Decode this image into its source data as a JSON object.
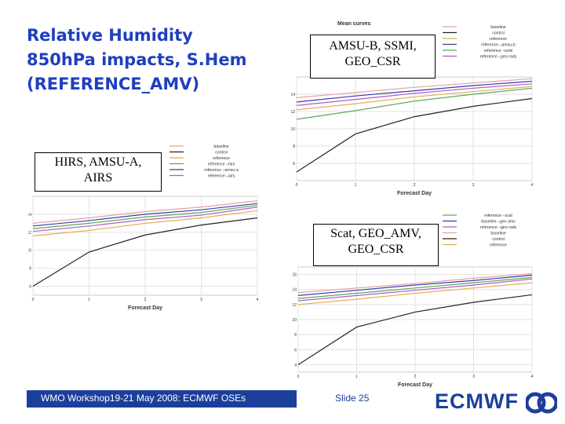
{
  "title": {
    "line1": "Relative Humidity",
    "line2": "850hPa impacts, S.Hem",
    "line3": "(REFERENCE_AMV)"
  },
  "footer": {
    "text": "WMO Workshop19-21 May 2008: ECMWF OSEs",
    "slide": "Slide 25",
    "logo": "ECMWF"
  },
  "colors": {
    "accent": "#1c3f9b",
    "title": "#1f3fbf"
  },
  "chart_data": [
    {
      "type": "line",
      "label": [
        "HIRS, AMSU-A,",
        "AIRS"
      ],
      "xlabel": "Forecast Day",
      "x": [
        0,
        1,
        2,
        3,
        4
      ],
      "xticks": [
        "0",
        "1",
        "2",
        "3",
        "4"
      ],
      "ylim": [
        5,
        16
      ],
      "yticks": [
        "6",
        "8",
        "10",
        "12",
        "14"
      ],
      "legend_position": "top",
      "series": [
        {
          "name": "baseline",
          "color": "#e8a0a0",
          "values": [
            13.0,
            13.6,
            14.3,
            14.8,
            15.5
          ]
        },
        {
          "name": "control",
          "color": "#222222",
          "values": [
            6.0,
            9.8,
            11.7,
            12.8,
            13.6
          ]
        },
        {
          "name": "reference",
          "color": "#e0b050",
          "values": [
            11.6,
            12.2,
            13.0,
            13.6,
            14.4
          ]
        },
        {
          "name": "reference –hirs",
          "color": "#55aa55",
          "values": [
            12.4,
            13.0,
            13.7,
            14.2,
            15.0
          ]
        },
        {
          "name": "reference –amsu-a",
          "color": "#3a3ab0",
          "values": [
            12.7,
            13.3,
            14.0,
            14.5,
            15.2
          ]
        },
        {
          "name": "reference –airs",
          "color": "#b05cc8",
          "values": [
            12.1,
            12.7,
            13.4,
            13.9,
            14.8
          ]
        }
      ]
    },
    {
      "type": "line",
      "label": [
        "AMSU-B, SSMI,",
        "GEO_CSR"
      ],
      "title": "Mean curves",
      "xlabel": "Forecast Day",
      "x": [
        0,
        1,
        2,
        3,
        4
      ],
      "xticks": [
        "0",
        "1",
        "2",
        "3",
        "4"
      ],
      "ylim": [
        4,
        16
      ],
      "yticks": [
        "6",
        "8",
        "10",
        "12",
        "14"
      ],
      "legend_position": "top-right",
      "series": [
        {
          "name": "baseline",
          "color": "#e8a0a0",
          "values": [
            13.6,
            14.2,
            14.8,
            15.3,
            15.8
          ]
        },
        {
          "name": "control",
          "color": "#222222",
          "values": [
            5.0,
            9.4,
            11.4,
            12.6,
            13.5
          ]
        },
        {
          "name": "reference",
          "color": "#e0b050",
          "values": [
            12.2,
            12.9,
            13.7,
            14.3,
            14.9
          ]
        },
        {
          "name": "reference –amsu-b",
          "color": "#3a3ab0",
          "values": [
            13.1,
            13.8,
            14.4,
            15.0,
            15.5
          ]
        },
        {
          "name": "reference –ssmi",
          "color": "#55aa55",
          "values": [
            11.1,
            12.1,
            13.2,
            14.0,
            14.7
          ]
        },
        {
          "name": "reference –geo rads",
          "color": "#b05cc8",
          "values": [
            12.7,
            13.4,
            14.1,
            14.7,
            15.2
          ]
        }
      ]
    },
    {
      "type": "line",
      "label": [
        "Scat, GEO_AMV,",
        "GEO_CSR"
      ],
      "xlabel": "Forecast Day",
      "x": [
        0,
        1,
        2,
        3,
        4
      ],
      "xticks": [
        "0",
        "1",
        "2",
        "3",
        "4"
      ],
      "ylim": [
        3,
        17
      ],
      "yticks": [
        "4",
        "6",
        "8",
        "10",
        "12",
        "14",
        "16"
      ],
      "legend_position": "top-right",
      "series": [
        {
          "name": "reference –scat",
          "color": "#55aa55",
          "values": [
            12.8,
            13.5,
            14.2,
            14.9,
            15.6
          ]
        },
        {
          "name": "baseline –geo amv",
          "color": "#3a3ab0",
          "values": [
            13.2,
            13.9,
            14.6,
            15.2,
            15.9
          ]
        },
        {
          "name": "reference –geo rads",
          "color": "#b05cc8",
          "values": [
            12.5,
            13.2,
            13.9,
            14.6,
            15.4
          ]
        },
        {
          "name": "baseline",
          "color": "#e8a0a0",
          "values": [
            13.6,
            14.2,
            14.8,
            15.5,
            16.1
          ]
        },
        {
          "name": "control",
          "color": "#222222",
          "values": [
            4.0,
            9.0,
            11.0,
            12.3,
            13.3
          ]
        },
        {
          "name": "reference",
          "color": "#e0b050",
          "values": [
            12.0,
            12.7,
            13.5,
            14.2,
            14.9
          ]
        }
      ]
    }
  ]
}
